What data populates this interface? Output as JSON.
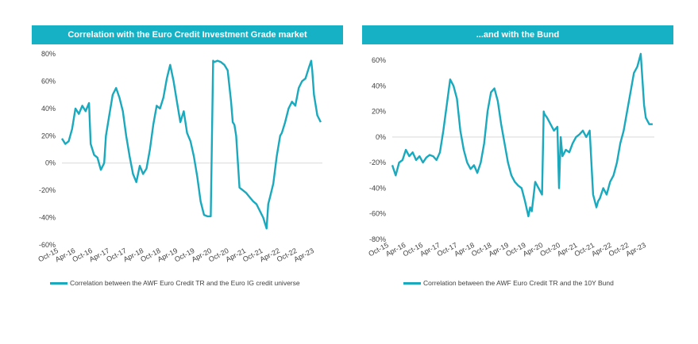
{
  "charts": [
    {
      "title": "Correlation with the Euro Credit Investment Grade market",
      "legend": "Correlation between the AWF Euro Credit TR and the Euro IG credit universe"
    },
    {
      "title": "...and with the Bund",
      "legend": "Correlation between the AWF Euro Credit TR and the 10Y Bund"
    }
  ],
  "chart_data": [
    {
      "type": "line",
      "title": "Correlation with the Euro Credit Investment Grade market",
      "xlabel": "",
      "ylabel": "",
      "ylim": [
        -60,
        80
      ],
      "y_ticks": [
        "80%",
        "60%",
        "40%",
        "20%",
        "0%",
        "-20%",
        "-40%",
        "-60%"
      ],
      "x_ticks": [
        "Oct-15",
        "Apr-16",
        "Oct-16",
        "Apr-17",
        "Oct-17",
        "Apr-18",
        "Oct-18",
        "Apr-19",
        "Oct-19",
        "Apr-20",
        "Oct-20",
        "Apr-21",
        "Oct-21",
        "Apr-22",
        "Oct-22",
        "Apr-23"
      ],
      "grid": false,
      "legend_position": "bottom",
      "color": "#1aa9bd",
      "series": [
        {
          "name": "Correlation between the AWF Euro Credit TR and the Euro IG credit universe",
          "x": [
            2015.75,
            2015.85,
            2015.95,
            2016.05,
            2016.15,
            2016.25,
            2016.35,
            2016.45,
            2016.55,
            2016.6,
            2016.7,
            2016.8,
            2016.9,
            2017.0,
            2017.05,
            2017.15,
            2017.25,
            2017.35,
            2017.45,
            2017.55,
            2017.65,
            2017.75,
            2017.85,
            2017.95,
            2018.05,
            2018.15,
            2018.25,
            2018.35,
            2018.45,
            2018.55,
            2018.65,
            2018.75,
            2018.85,
            2018.95,
            2019.05,
            2019.15,
            2019.25,
            2019.35,
            2019.45,
            2019.55,
            2019.65,
            2019.75,
            2019.85,
            2019.95,
            2020.05,
            2020.15,
            2020.22,
            2020.25,
            2020.35,
            2020.45,
            2020.55,
            2020.65,
            2020.75,
            2020.8,
            2020.85,
            2020.9,
            2021.0,
            2021.1,
            2021.2,
            2021.3,
            2021.4,
            2021.5,
            2021.6,
            2021.7,
            2021.8,
            2021.85,
            2021.9,
            2022.0,
            2022.1,
            2022.2,
            2022.25,
            2022.35,
            2022.45,
            2022.55,
            2022.65,
            2022.75,
            2022.85,
            2022.95,
            2023.05,
            2023.12,
            2023.15,
            2023.2,
            2023.3,
            2023.4
          ],
          "values": [
            18,
            14,
            16,
            25,
            40,
            36,
            42,
            38,
            44,
            14,
            6,
            4,
            -5,
            0,
            20,
            35,
            50,
            55,
            48,
            38,
            20,
            5,
            -8,
            -14,
            -2,
            -8,
            -4,
            10,
            28,
            42,
            40,
            48,
            62,
            72,
            60,
            45,
            30,
            38,
            22,
            16,
            5,
            -10,
            -28,
            -38,
            -39,
            -39,
            75,
            74,
            75,
            74,
            72,
            68,
            45,
            30,
            28,
            20,
            -18,
            -20,
            -22,
            -25,
            -28,
            -30,
            -35,
            -40,
            -48,
            -30,
            -25,
            -15,
            5,
            20,
            22,
            30,
            40,
            45,
            42,
            55,
            60,
            62,
            70,
            75,
            68,
            50,
            35,
            30
          ]
        }
      ]
    },
    {
      "type": "line",
      "title": "...and with the Bund",
      "xlabel": "",
      "ylabel": "",
      "ylim": [
        -80,
        60
      ],
      "y_ticks": [
        "60%",
        "40%",
        "20%",
        "0%",
        "-20%",
        "-40%",
        "-60%",
        "-80%"
      ],
      "x_ticks": [
        "Oct-15",
        "Apr-16",
        "Oct-16",
        "Apr-17",
        "Oct-17",
        "Apr-18",
        "Oct-18",
        "Apr-19",
        "Oct-19",
        "Apr-20",
        "Oct-20",
        "Apr-21",
        "Oct-21",
        "Apr-22",
        "Oct-22",
        "Apr-23"
      ],
      "grid": false,
      "legend_position": "bottom",
      "color": "#1aa9bd",
      "series": [
        {
          "name": "Correlation between the AWF Euro Credit TR and the 10Y Bund",
          "x": [
            2015.75,
            2015.85,
            2015.95,
            2016.05,
            2016.15,
            2016.25,
            2016.35,
            2016.45,
            2016.55,
            2016.65,
            2016.75,
            2016.85,
            2016.95,
            2017.05,
            2017.15,
            2017.25,
            2017.35,
            2017.45,
            2017.55,
            2017.65,
            2017.75,
            2017.85,
            2017.95,
            2018.05,
            2018.15,
            2018.25,
            2018.35,
            2018.45,
            2018.55,
            2018.65,
            2018.75,
            2018.85,
            2018.95,
            2019.05,
            2019.15,
            2019.25,
            2019.35,
            2019.45,
            2019.55,
            2019.65,
            2019.75,
            2019.8,
            2019.85,
            2019.95,
            2020.05,
            2020.15,
            2020.2,
            2020.22,
            2020.3,
            2020.4,
            2020.5,
            2020.6,
            2020.65,
            2020.7,
            2020.75,
            2020.85,
            2020.95,
            2021.05,
            2021.15,
            2021.25,
            2021.35,
            2021.45,
            2021.55,
            2021.65,
            2021.75,
            2021.8,
            2021.85,
            2021.95,
            2022.05,
            2022.15,
            2022.25,
            2022.35,
            2022.45,
            2022.55,
            2022.65,
            2022.75,
            2022.85,
            2022.95,
            2023.05,
            2023.15,
            2023.2,
            2023.3,
            2023.4
          ],
          "values": [
            -22,
            -30,
            -20,
            -18,
            -10,
            -15,
            -12,
            -18,
            -15,
            -20,
            -16,
            -14,
            -15,
            -18,
            -12,
            5,
            25,
            45,
            40,
            30,
            5,
            -10,
            -20,
            -25,
            -22,
            -28,
            -20,
            -5,
            20,
            35,
            38,
            28,
            10,
            -5,
            -20,
            -30,
            -35,
            -38,
            -40,
            -50,
            -62,
            -55,
            -58,
            -35,
            -40,
            -45,
            20,
            18,
            15,
            10,
            5,
            8,
            -40,
            0,
            -15,
            -10,
            -12,
            -5,
            0,
            2,
            5,
            0,
            5,
            -45,
            -55,
            -50,
            -48,
            -40,
            -45,
            -35,
            -30,
            -20,
            -5,
            5,
            20,
            35,
            50,
            55,
            65,
            25,
            15,
            10,
            10
          ]
        }
      ]
    }
  ]
}
